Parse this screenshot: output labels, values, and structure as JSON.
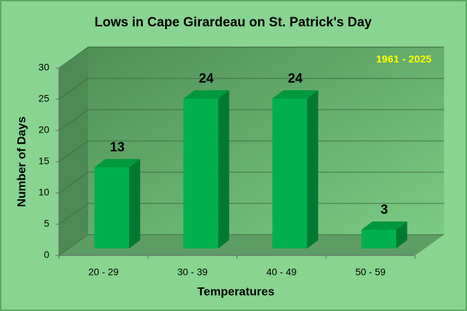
{
  "chart_data": {
    "type": "bar3d",
    "title": "Lows in Cape Girardeau on St. Patrick's Day",
    "annotation": "1961 - 2025",
    "categories": [
      "20 - 29",
      "30 - 39",
      "40 - 49",
      "50 - 59"
    ],
    "values": [
      13,
      24,
      24,
      3
    ],
    "color": "#00b050",
    "xlabel": "Temperatures",
    "ylabel": "Number of Days",
    "ylim": [
      0,
      30
    ],
    "yticks": [
      0,
      5,
      10,
      15,
      20,
      25,
      30
    ],
    "grid": true
  }
}
